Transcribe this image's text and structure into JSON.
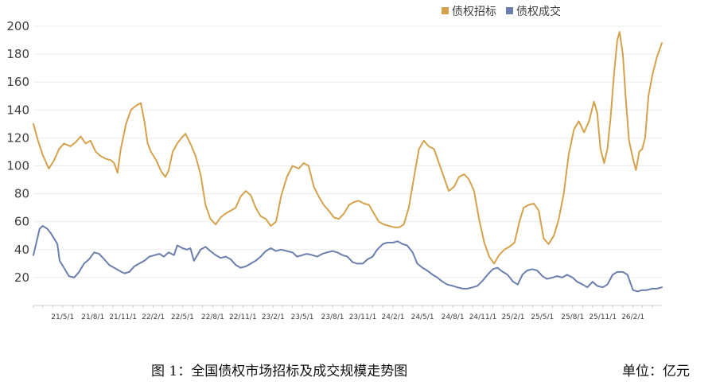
{
  "chart_data": {
    "type": "line",
    "title": "",
    "xlabel": "",
    "ylabel": "",
    "ylim": [
      0,
      200
    ],
    "yticks": [
      20,
      40,
      60,
      80,
      100,
      120,
      140,
      160,
      180,
      200
    ],
    "x_range": [
      "2021-02-01",
      "2026-04-30"
    ],
    "xtick_labels": [
      "21/5/1",
      "21/8/1",
      "21/11/1",
      "22/2/1",
      "22/5/1",
      "22/8/1",
      "22/11/1",
      "23/2/1",
      "23/5/1",
      "23/8/1",
      "23/11/1",
      "24/2/1",
      "24/5/1",
      "24/8/1",
      "24/11/1",
      "25/2/1",
      "25/5/1",
      "25/8/1",
      "25/11/1",
      "26/2/1"
    ],
    "grid": "horizontal",
    "legend_position": "top-right",
    "series": [
      {
        "name": "债权招标",
        "color": "#D4A24C",
        "points": [
          [
            "2021-02-01",
            130
          ],
          [
            "2021-02-15",
            118
          ],
          [
            "2021-03-01",
            108
          ],
          [
            "2021-03-20",
            98
          ],
          [
            "2021-04-05",
            104
          ],
          [
            "2021-04-20",
            112
          ],
          [
            "2021-05-05",
            116
          ],
          [
            "2021-05-25",
            114
          ],
          [
            "2021-06-10",
            117
          ],
          [
            "2021-06-25",
            121
          ],
          [
            "2021-07-10",
            116
          ],
          [
            "2021-07-25",
            118
          ],
          [
            "2021-08-10",
            110
          ],
          [
            "2021-08-25",
            107
          ],
          [
            "2021-09-10",
            105
          ],
          [
            "2021-09-25",
            104
          ],
          [
            "2021-10-05",
            102
          ],
          [
            "2021-10-15",
            95
          ],
          [
            "2021-10-25",
            112
          ],
          [
            "2021-11-10",
            130
          ],
          [
            "2021-11-25",
            140
          ],
          [
            "2021-12-10",
            143
          ],
          [
            "2021-12-25",
            145
          ],
          [
            "2022-01-05",
            132
          ],
          [
            "2022-01-15",
            116
          ],
          [
            "2022-01-25",
            110
          ],
          [
            "2022-02-10",
            104
          ],
          [
            "2022-02-25",
            96
          ],
          [
            "2022-03-10",
            92
          ],
          [
            "2022-03-20",
            97
          ],
          [
            "2022-04-01",
            110
          ],
          [
            "2022-04-15",
            116
          ],
          [
            "2022-04-28",
            120
          ],
          [
            "2022-05-10",
            123
          ],
          [
            "2022-05-25",
            116
          ],
          [
            "2022-06-10",
            107
          ],
          [
            "2022-06-25",
            94
          ],
          [
            "2022-07-10",
            72
          ],
          [
            "2022-07-25",
            62
          ],
          [
            "2022-08-10",
            58
          ],
          [
            "2022-08-25",
            63
          ],
          [
            "2022-09-10",
            66
          ],
          [
            "2022-09-25",
            68
          ],
          [
            "2022-10-10",
            70
          ],
          [
            "2022-10-25",
            78
          ],
          [
            "2022-11-10",
            82
          ],
          [
            "2022-11-25",
            79
          ],
          [
            "2022-12-10",
            70
          ],
          [
            "2022-12-25",
            64
          ],
          [
            "2023-01-10",
            62
          ],
          [
            "2023-01-25",
            57
          ],
          [
            "2023-02-10",
            60
          ],
          [
            "2023-02-25",
            78
          ],
          [
            "2023-03-15",
            92
          ],
          [
            "2023-04-01",
            100
          ],
          [
            "2023-04-20",
            98
          ],
          [
            "2023-05-05",
            102
          ],
          [
            "2023-05-20",
            100
          ],
          [
            "2023-06-05",
            85
          ],
          [
            "2023-06-20",
            78
          ],
          [
            "2023-07-05",
            72
          ],
          [
            "2023-07-20",
            68
          ],
          [
            "2023-08-05",
            63
          ],
          [
            "2023-08-20",
            62
          ],
          [
            "2023-09-05",
            66
          ],
          [
            "2023-09-20",
            72
          ],
          [
            "2023-10-05",
            74
          ],
          [
            "2023-10-20",
            75
          ],
          [
            "2023-11-05",
            73
          ],
          [
            "2023-11-20",
            72
          ],
          [
            "2023-12-05",
            66
          ],
          [
            "2023-12-20",
            60
          ],
          [
            "2024-01-05",
            58
          ],
          [
            "2024-01-20",
            57
          ],
          [
            "2024-02-05",
            56
          ],
          [
            "2024-02-20",
            56
          ],
          [
            "2024-03-05",
            58
          ],
          [
            "2024-03-20",
            70
          ],
          [
            "2024-04-05",
            92
          ],
          [
            "2024-04-20",
            112
          ],
          [
            "2024-05-05",
            118
          ],
          [
            "2024-05-20",
            114
          ],
          [
            "2024-06-05",
            112
          ],
          [
            "2024-06-20",
            102
          ],
          [
            "2024-07-05",
            92
          ],
          [
            "2024-07-20",
            82
          ],
          [
            "2024-08-05",
            85
          ],
          [
            "2024-08-20",
            92
          ],
          [
            "2024-09-05",
            94
          ],
          [
            "2024-09-20",
            90
          ],
          [
            "2024-10-05",
            82
          ],
          [
            "2024-10-20",
            62
          ],
          [
            "2024-11-05",
            45
          ],
          [
            "2024-11-20",
            35
          ],
          [
            "2024-12-05",
            30
          ],
          [
            "2024-12-20",
            36
          ],
          [
            "2025-01-05",
            40
          ],
          [
            "2025-01-20",
            42
          ],
          [
            "2025-02-05",
            45
          ],
          [
            "2025-02-20",
            60
          ],
          [
            "2025-03-05",
            70
          ],
          [
            "2025-03-20",
            72
          ],
          [
            "2025-04-05",
            73
          ],
          [
            "2025-04-20",
            68
          ],
          [
            "2025-05-05",
            48
          ],
          [
            "2025-05-20",
            44
          ],
          [
            "2025-06-05",
            50
          ],
          [
            "2025-06-20",
            62
          ],
          [
            "2025-07-05",
            80
          ],
          [
            "2025-07-20",
            108
          ],
          [
            "2025-08-05",
            126
          ],
          [
            "2025-08-20",
            132
          ],
          [
            "2025-09-05",
            124
          ],
          [
            "2025-09-20",
            132
          ],
          [
            "2025-10-05",
            146
          ],
          [
            "2025-10-15",
            138
          ],
          [
            "2025-10-25",
            112
          ],
          [
            "2025-11-05",
            102
          ],
          [
            "2025-11-15",
            112
          ],
          [
            "2025-11-25",
            135
          ],
          [
            "2025-12-05",
            165
          ],
          [
            "2025-12-15",
            190
          ],
          [
            "2025-12-22",
            196
          ],
          [
            "2026-01-01",
            180
          ],
          [
            "2026-01-10",
            148
          ],
          [
            "2026-01-20",
            118
          ],
          [
            "2026-02-01",
            105
          ],
          [
            "2026-02-10",
            97
          ],
          [
            "2026-02-20",
            110
          ],
          [
            "2026-03-01",
            112
          ],
          [
            "2026-03-10",
            120
          ],
          [
            "2026-03-20",
            150
          ],
          [
            "2026-04-01",
            165
          ],
          [
            "2026-04-15",
            178
          ],
          [
            "2026-04-30",
            188
          ]
        ]
      },
      {
        "name": "债权成交",
        "color": "#6B7EAD",
        "points": [
          [
            "2021-02-01",
            36
          ],
          [
            "2021-02-10",
            45
          ],
          [
            "2021-02-20",
            55
          ],
          [
            "2021-03-01",
            57
          ],
          [
            "2021-03-15",
            55
          ],
          [
            "2021-03-25",
            52
          ],
          [
            "2021-04-05",
            48
          ],
          [
            "2021-04-15",
            44
          ],
          [
            "2021-04-22",
            32
          ],
          [
            "2021-05-05",
            27
          ],
          [
            "2021-05-20",
            21
          ],
          [
            "2021-06-05",
            20
          ],
          [
            "2021-06-20",
            24
          ],
          [
            "2021-07-05",
            30
          ],
          [
            "2021-07-20",
            33
          ],
          [
            "2021-08-05",
            38
          ],
          [
            "2021-08-20",
            37
          ],
          [
            "2021-09-05",
            33
          ],
          [
            "2021-09-20",
            29
          ],
          [
            "2021-10-05",
            27
          ],
          [
            "2021-10-20",
            25
          ],
          [
            "2021-11-05",
            23
          ],
          [
            "2021-11-20",
            24
          ],
          [
            "2021-12-05",
            28
          ],
          [
            "2021-12-20",
            30
          ],
          [
            "2022-01-05",
            32
          ],
          [
            "2022-01-20",
            35
          ],
          [
            "2022-02-05",
            36
          ],
          [
            "2022-02-20",
            37
          ],
          [
            "2022-03-05",
            35
          ],
          [
            "2022-03-20",
            38
          ],
          [
            "2022-04-05",
            36
          ],
          [
            "2022-04-15",
            43
          ],
          [
            "2022-05-01",
            41
          ],
          [
            "2022-05-15",
            40
          ],
          [
            "2022-05-25",
            41
          ],
          [
            "2022-06-05",
            32
          ],
          [
            "2022-06-15",
            36
          ],
          [
            "2022-06-25",
            40
          ],
          [
            "2022-07-10",
            42
          ],
          [
            "2022-07-25",
            39
          ],
          [
            "2022-08-10",
            36
          ],
          [
            "2022-08-25",
            34
          ],
          [
            "2022-09-10",
            35
          ],
          [
            "2022-09-25",
            33
          ],
          [
            "2022-10-10",
            29
          ],
          [
            "2022-10-25",
            27
          ],
          [
            "2022-11-10",
            28
          ],
          [
            "2022-11-25",
            30
          ],
          [
            "2022-12-10",
            32
          ],
          [
            "2022-12-25",
            35
          ],
          [
            "2023-01-10",
            39
          ],
          [
            "2023-01-25",
            41
          ],
          [
            "2023-02-10",
            39
          ],
          [
            "2023-02-25",
            40
          ],
          [
            "2023-03-15",
            39
          ],
          [
            "2023-04-01",
            38
          ],
          [
            "2023-04-15",
            35
          ],
          [
            "2023-05-01",
            36
          ],
          [
            "2023-05-15",
            37
          ],
          [
            "2023-06-01",
            36
          ],
          [
            "2023-06-15",
            35
          ],
          [
            "2023-07-01",
            37
          ],
          [
            "2023-07-15",
            38
          ],
          [
            "2023-08-01",
            39
          ],
          [
            "2023-08-15",
            38
          ],
          [
            "2023-09-01",
            36
          ],
          [
            "2023-09-15",
            35
          ],
          [
            "2023-10-01",
            31
          ],
          [
            "2023-10-15",
            30
          ],
          [
            "2023-11-01",
            30
          ],
          [
            "2023-11-15",
            33
          ],
          [
            "2023-12-01",
            35
          ],
          [
            "2023-12-15",
            40
          ],
          [
            "2024-01-01",
            44
          ],
          [
            "2024-01-15",
            45
          ],
          [
            "2024-02-01",
            45
          ],
          [
            "2024-02-15",
            46
          ],
          [
            "2024-03-01",
            44
          ],
          [
            "2024-03-15",
            43
          ],
          [
            "2024-04-01",
            38
          ],
          [
            "2024-04-15",
            30
          ],
          [
            "2024-05-01",
            27
          ],
          [
            "2024-05-15",
            25
          ],
          [
            "2024-06-01",
            22
          ],
          [
            "2024-06-15",
            20
          ],
          [
            "2024-07-01",
            17
          ],
          [
            "2024-07-15",
            15
          ],
          [
            "2024-08-01",
            14
          ],
          [
            "2024-08-15",
            13
          ],
          [
            "2024-09-01",
            12
          ],
          [
            "2024-09-15",
            12
          ],
          [
            "2024-10-01",
            13
          ],
          [
            "2024-10-15",
            14
          ],
          [
            "2024-11-01",
            18
          ],
          [
            "2024-11-15",
            22
          ],
          [
            "2024-12-01",
            26
          ],
          [
            "2024-12-15",
            27
          ],
          [
            "2025-01-01",
            24
          ],
          [
            "2025-01-15",
            22
          ],
          [
            "2025-02-01",
            17
          ],
          [
            "2025-02-15",
            15
          ],
          [
            "2025-03-01",
            22
          ],
          [
            "2025-03-15",
            25
          ],
          [
            "2025-04-01",
            26
          ],
          [
            "2025-04-15",
            25
          ],
          [
            "2025-05-01",
            21
          ],
          [
            "2025-05-15",
            19
          ],
          [
            "2025-06-01",
            20
          ],
          [
            "2025-06-15",
            21
          ],
          [
            "2025-07-01",
            20
          ],
          [
            "2025-07-15",
            22
          ],
          [
            "2025-08-01",
            20
          ],
          [
            "2025-08-15",
            17
          ],
          [
            "2025-09-01",
            15
          ],
          [
            "2025-09-15",
            13
          ],
          [
            "2025-10-01",
            17
          ],
          [
            "2025-10-15",
            14
          ],
          [
            "2025-11-01",
            13
          ],
          [
            "2025-11-15",
            15
          ],
          [
            "2025-12-01",
            22
          ],
          [
            "2025-12-15",
            24
          ],
          [
            "2026-01-01",
            24
          ],
          [
            "2026-01-15",
            22
          ],
          [
            "2026-02-01",
            11
          ],
          [
            "2026-02-15",
            10
          ],
          [
            "2026-03-01",
            11
          ],
          [
            "2026-03-15",
            11
          ],
          [
            "2026-04-01",
            12
          ],
          [
            "2026-04-15",
            12
          ],
          [
            "2026-04-30",
            13
          ]
        ]
      }
    ]
  },
  "caption": {
    "left": "图 1：全国债权市场招标及成交规模走势图",
    "right": "单位：亿元"
  }
}
